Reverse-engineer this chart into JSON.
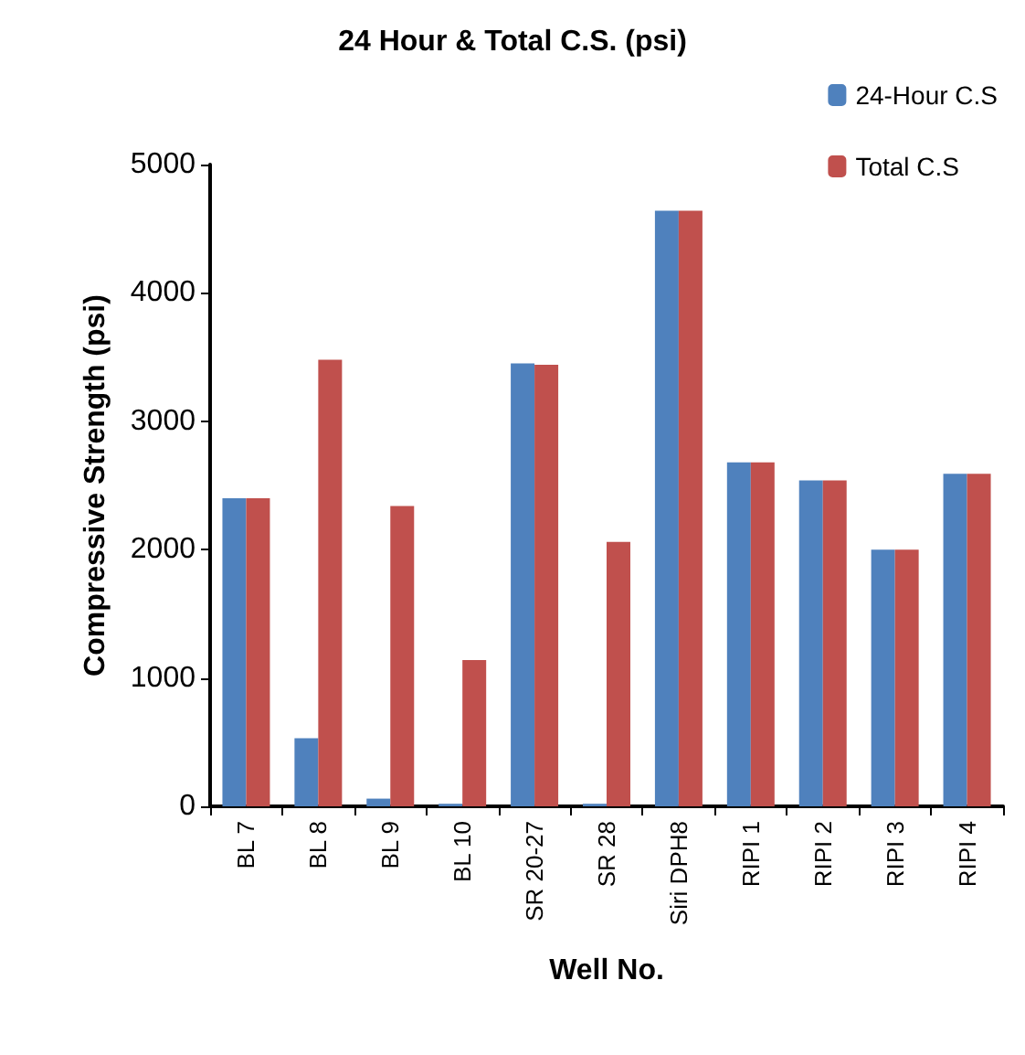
{
  "chart_data": {
    "type": "bar",
    "title": "24 Hour & Total C.S. (psi)",
    "xlabel": "Well No.",
    "ylabel": "Compressive Strength (psi)",
    "categories": [
      "BL 7",
      "BL 8",
      "BL 9",
      "BL 10",
      "SR 20-27",
      "SR 28",
      "Siri DPH8",
      "RIPI 1",
      "RIPI 2",
      "RIPI 3",
      "RIPI 4"
    ],
    "series": [
      {
        "name": "24-Hour C.S",
        "color": "#4f81bd",
        "values": [
          2400,
          530,
          60,
          20,
          3450,
          20,
          4640,
          2680,
          2540,
          2000,
          2590
        ]
      },
      {
        "name": "Total C.S",
        "color": "#c0504d",
        "values": [
          2400,
          3480,
          2340,
          1140,
          3440,
          2060,
          4640,
          2680,
          2540,
          2000,
          2590
        ]
      }
    ],
    "ylim": [
      0,
      5000
    ],
    "yticks": [
      0,
      1000,
      2000,
      3000,
      4000,
      5000
    ],
    "grid": false,
    "legend": "top right"
  }
}
